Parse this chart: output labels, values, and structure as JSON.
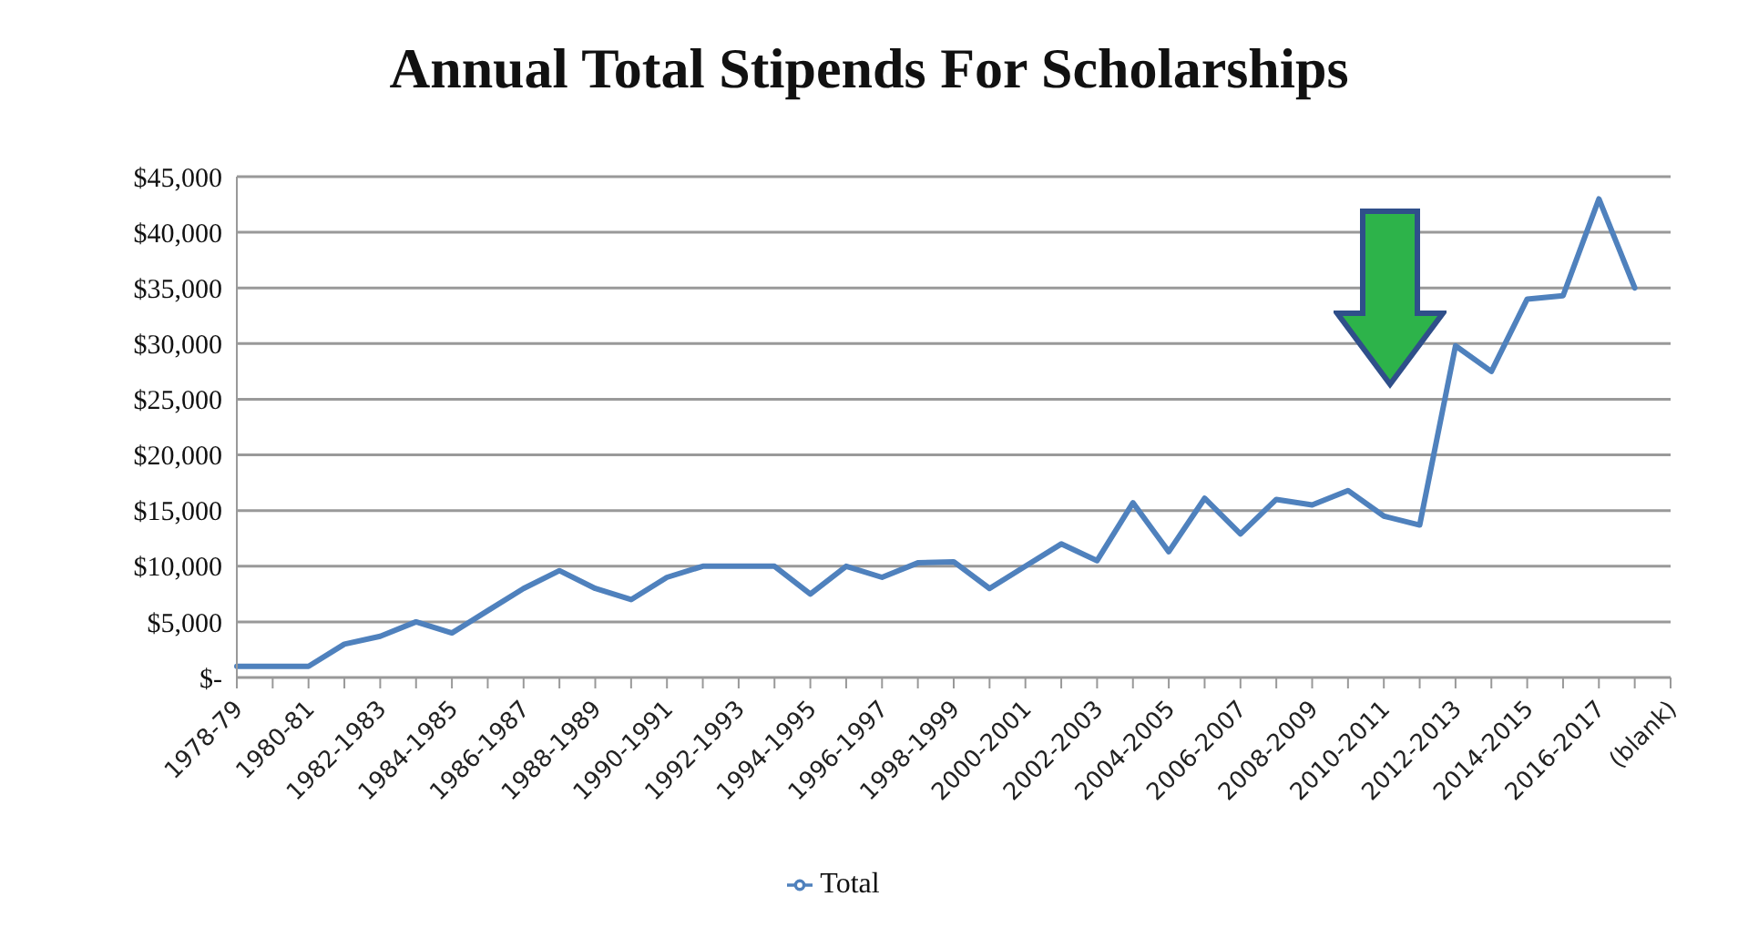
{
  "chart_data": {
    "type": "line",
    "title": "Annual Total Stipends For Scholarships",
    "categories": [
      "1978-79",
      null,
      "1980-81",
      null,
      "1982-1983",
      null,
      "1984-1985",
      null,
      "1986-1987",
      null,
      "1988-1989",
      null,
      "1990-1991",
      null,
      "1992-1993",
      null,
      "1994-1995",
      null,
      "1996-1997",
      null,
      "1998-1999",
      null,
      "2000-2001",
      null,
      "2002-2003",
      null,
      "2004-2005",
      null,
      "2006-2007",
      null,
      "2008-2009",
      null,
      "2010-2011",
      null,
      "2012-2013",
      null,
      "2014-2015",
      null,
      "2016-2017",
      null,
      "(blank)"
    ],
    "series": [
      {
        "name": "Total",
        "color": "#4f81bd",
        "values": [
          1000,
          1000,
          1000,
          3000,
          3700,
          5000,
          4000,
          6000,
          8000,
          9600,
          8000,
          7000,
          9000,
          10000,
          10000,
          10000,
          7500,
          10000,
          9000,
          10300,
          10400,
          8000,
          10000,
          12000,
          10500,
          15700,
          11300,
          16100,
          12900,
          16000,
          15500,
          16800,
          14500,
          13700,
          29800,
          27500,
          34000,
          34300,
          43000,
          35000,
          null
        ]
      }
    ],
    "ylim": [
      0,
      45000
    ],
    "yticks": [
      {
        "value": 0,
        "label": "$-"
      },
      {
        "value": 5000,
        "label": "$5,000"
      },
      {
        "value": 10000,
        "label": "$10,000"
      },
      {
        "value": 15000,
        "label": "$15,000"
      },
      {
        "value": 20000,
        "label": "$20,000"
      },
      {
        "value": 25000,
        "label": "$25,000"
      },
      {
        "value": 30000,
        "label": "$30,000"
      },
      {
        "value": 35000,
        "label": "$35,000"
      },
      {
        "value": 40000,
        "label": "$40,000"
      },
      {
        "value": 45000,
        "label": "$45,000"
      }
    ],
    "grid": "y",
    "legend": "bottom",
    "marker": "none",
    "line_style": "solid"
  }
}
